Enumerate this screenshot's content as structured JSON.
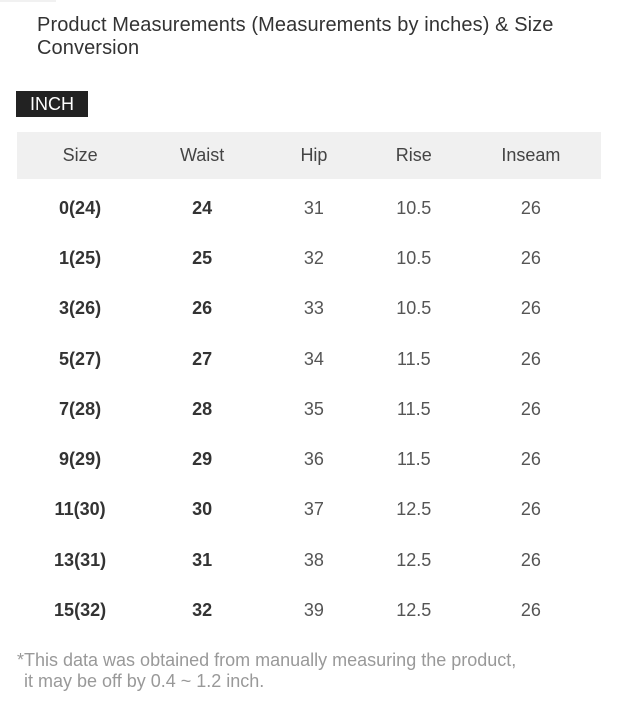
{
  "page": {
    "title": "Product Measurements (Measurements by inches) & Size Conversion",
    "unit_badge": "INCH",
    "footnote": {
      "line1": "*This data was obtained from manually measuring the product,",
      "line2": "it may be off by 0.4 ~ 1.2 inch."
    }
  },
  "table": {
    "headers": [
      "Size",
      "Waist",
      "Hip",
      "Rise",
      "Inseam"
    ],
    "rows": [
      [
        "0(24)",
        "24",
        "31",
        "10.5",
        "26"
      ],
      [
        "1(25)",
        "25",
        "32",
        "10.5",
        "26"
      ],
      [
        "3(26)",
        "26",
        "33",
        "10.5",
        "26"
      ],
      [
        "5(27)",
        "27",
        "34",
        "11.5",
        "26"
      ],
      [
        "7(28)",
        "28",
        "35",
        "11.5",
        "26"
      ],
      [
        "9(29)",
        "29",
        "36",
        "11.5",
        "26"
      ],
      [
        "11(30)",
        "30",
        "37",
        "12.5",
        "26"
      ],
      [
        "13(31)",
        "31",
        "38",
        "12.5",
        "26"
      ],
      [
        "15(32)",
        "32",
        "39",
        "12.5",
        "26"
      ]
    ]
  },
  "colors": {
    "badge_bg": "#222222",
    "badge_text": "#ffffff",
    "header_bg": "#f0f0f0",
    "text_dark": "#333333",
    "text_regular": "#555555",
    "footnote": "#999999",
    "page_bg": "#ffffff"
  }
}
